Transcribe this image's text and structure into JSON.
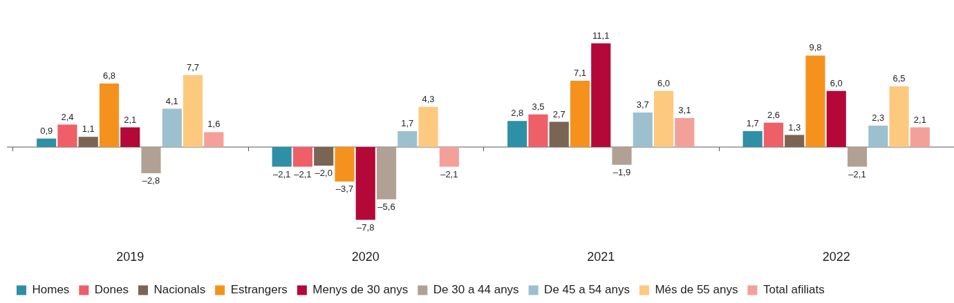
{
  "chart_data": {
    "type": "bar",
    "categories": [
      "2019",
      "2020",
      "2021",
      "2022"
    ],
    "series": [
      {
        "name": "Homes",
        "color": "#2e8fa6",
        "values": [
          0.9,
          -2.1,
          2.8,
          1.7
        ],
        "value_labels": [
          "0,9",
          "–2,1",
          "2,8",
          "1,7"
        ]
      },
      {
        "name": "Dones",
        "color": "#ef5f68",
        "values": [
          2.4,
          -2.1,
          3.5,
          2.6
        ],
        "value_labels": [
          "2,4",
          "–2,1",
          "3,5",
          "2,6"
        ]
      },
      {
        "name": "Nacionals",
        "color": "#7a6453",
        "values": [
          1.1,
          -2.0,
          2.7,
          1.3
        ],
        "value_labels": [
          "1,1",
          "–2,0",
          "2,7",
          "1,3"
        ]
      },
      {
        "name": "Estrangers",
        "color": "#f5921e",
        "values": [
          6.8,
          -3.7,
          7.1,
          9.8
        ],
        "value_labels": [
          "6,8",
          "–3,7",
          "7,1",
          "9,8"
        ]
      },
      {
        "name": "Menys de 30 anys",
        "color": "#b30838",
        "values": [
          2.1,
          -7.8,
          11.1,
          6.0
        ],
        "value_labels": [
          "2,1",
          "–7,8",
          "11,1",
          "6,0"
        ]
      },
      {
        "name": "De 30 a 44 anys",
        "color": "#b1a194",
        "values": [
          -2.8,
          -5.6,
          -1.9,
          -2.1
        ],
        "value_labels": [
          "–2,8",
          "–5,6",
          "–1,9",
          "–2,1"
        ]
      },
      {
        "name": "De 45 a 54 anys",
        "color": "#9dc0cf",
        "values": [
          4.1,
          1.7,
          3.7,
          2.3
        ],
        "value_labels": [
          "4,1",
          "1,7",
          "3,7",
          "2,3"
        ]
      },
      {
        "name": "Més de 55 anys",
        "color": "#fcc97f",
        "values": [
          7.7,
          4.3,
          6.0,
          6.5
        ],
        "value_labels": [
          "7,7",
          "4,3",
          "6,0",
          "6,5"
        ]
      },
      {
        "name": "Total afiliats",
        "color": "#f4a09a",
        "values": [
          1.6,
          -2.1,
          3.1,
          2.1
        ],
        "value_labels": [
          "1,6",
          "–2,1",
          "3,1",
          "2,1"
        ]
      }
    ],
    "grid": false,
    "legend": "bottom"
  }
}
